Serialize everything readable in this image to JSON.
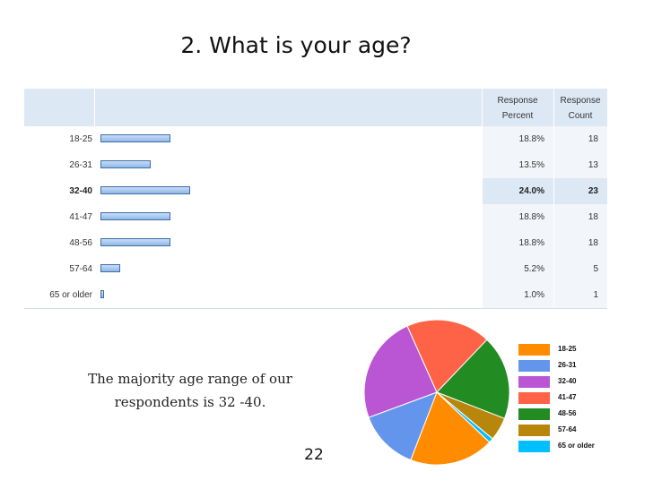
{
  "slide": {
    "title": "2. What is your age?",
    "summary_line1": "The majority age range of our",
    "summary_line2": "respondents is 32 -40.",
    "page_number": "22"
  },
  "table": {
    "header_percent_line1": "Response",
    "header_percent_line2": "Percent",
    "header_count_line1": "Response",
    "header_count_line2": "Count",
    "rows": [
      {
        "label": "18-25",
        "percent": "18.8%",
        "count": "18"
      },
      {
        "label": "26-31",
        "percent": "13.5%",
        "count": "13"
      },
      {
        "label": "32-40",
        "percent": "24.0%",
        "count": "23"
      },
      {
        "label": "41-47",
        "percent": "18.8%",
        "count": "18"
      },
      {
        "label": "48-56",
        "percent": "18.8%",
        "count": "18"
      },
      {
        "label": "57-64",
        "percent": "5.2%",
        "count": "5"
      },
      {
        "label": "65 or older",
        "percent": "1.0%",
        "count": "1"
      }
    ]
  },
  "chart_data": [
    {
      "type": "bar",
      "orientation": "horizontal",
      "categories": [
        "18-25",
        "26-31",
        "32-40",
        "41-47",
        "48-56",
        "57-64",
        "65 or older"
      ],
      "values": [
        18.8,
        13.5,
        24.0,
        18.8,
        18.8,
        5.2,
        1.0
      ],
      "counts": [
        18,
        13,
        23,
        18,
        18,
        5,
        1
      ],
      "highlighted": "32-40",
      "bar_color": "#9cc2ee",
      "bar_border_color": "#3f6ea8"
    },
    {
      "type": "pie",
      "categories": [
        "18-25",
        "26-31",
        "32-40",
        "41-47",
        "48-56",
        "57-64",
        "65 or older"
      ],
      "values": [
        18.8,
        13.5,
        24.0,
        18.8,
        18.8,
        5.2,
        1.0
      ],
      "colors": [
        "#ff8c00",
        "#6495ed",
        "#ba55d3",
        "#ff6347",
        "#228b22",
        "#b8860b",
        "#00bfff"
      ],
      "legend_position": "right"
    }
  ]
}
